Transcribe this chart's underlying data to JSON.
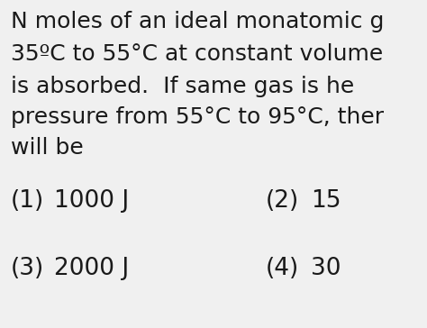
{
  "background_color": "#f0f0f0",
  "line1": "N moles of an ideal monatomic g",
  "line2": "35ºC to 55°C at constant volume",
  "line3": "is absorbed.  If same gas is he",
  "line4": "pressure from 55°C to 95°C, ther",
  "line5": "will be",
  "opt1_label": "(1)",
  "opt1_value": "1000 J",
  "opt2_label": "(2)",
  "opt2_value": "15",
  "opt3_label": "(3)",
  "opt3_value": "2000 J",
  "opt4_label": "(4)",
  "opt4_value": "30",
  "text_color": "#1a1a1a",
  "font_size_body": 18,
  "font_size_options": 19
}
